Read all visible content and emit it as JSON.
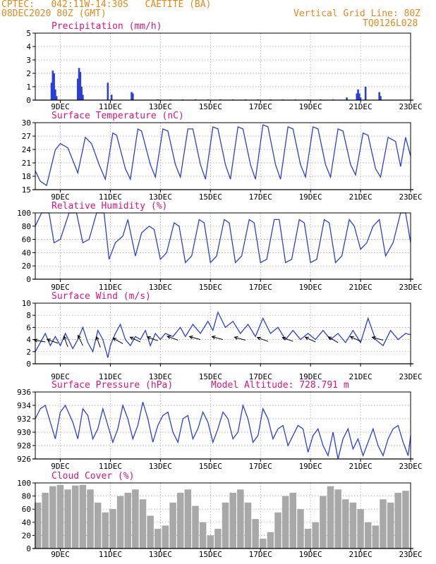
{
  "header": {
    "line1_left": "CPTEC:   042:11W-14:30S   CAETITE (BA)",
    "line2_left": "08DEC2020 80Z (GMT)",
    "line1_right": "Vertical Grid Line: 80Z",
    "line2_right": "TQ0126L028"
  },
  "x_ticks": [
    "9DEC",
    "11DEC",
    "13DEC",
    "15DEC",
    "17DEC",
    "19DEC",
    "21DEC",
    "23DEC"
  ],
  "colors": {
    "line": "#2b3fd8",
    "bar": "#2b3fd8",
    "cloud": "#a8a8a8",
    "title": "#d8157a",
    "header": "#e08a1e"
  },
  "chart_data": [
    {
      "type": "bar",
      "title": "Precipitation (mm/h)",
      "ylim": [
        0,
        5
      ],
      "yticks": [
        "0",
        "1",
        "2",
        "3",
        "4",
        "5"
      ],
      "x_range_days": [
        8.0,
        23.0
      ],
      "x": [
        8.65,
        8.7,
        8.75,
        8.8,
        8.85,
        9.7,
        9.75,
        9.8,
        9.85,
        9.9,
        10.9,
        11.05,
        11.85,
        11.9,
        12.9,
        13.4,
        13.9,
        14.4,
        14.9,
        15.4,
        15.9,
        16.4,
        16.9,
        17.4,
        17.9,
        18.4,
        18.9,
        19.4,
        19.9,
        20.45,
        20.85,
        20.9,
        20.95,
        21.0,
        21.2,
        21.75,
        21.8
      ],
      "values": [
        1.3,
        2.2,
        2.0,
        0.8,
        0.3,
        1.6,
        2.4,
        2.1,
        1.0,
        0.4,
        1.3,
        0.4,
        0.6,
        0.5,
        0.05,
        0.05,
        0.05,
        0.05,
        0.05,
        0.05,
        0.05,
        0.05,
        0.05,
        0.05,
        0.05,
        0.05,
        0.05,
        0.05,
        0.05,
        0.2,
        0.5,
        0.8,
        0.5,
        0.2,
        1.0,
        0.6,
        0.3
      ]
    },
    {
      "type": "line",
      "title": "Surface Temperature (nC)",
      "ylim": [
        15,
        31
      ],
      "yticks": [
        "15",
        "18",
        "21",
        "24",
        "27",
        "30"
      ],
      "x_range_days": [
        8.0,
        23.0
      ],
      "x": [
        8.0,
        8.2,
        8.45,
        8.8,
        9.0,
        9.3,
        9.7,
        10.0,
        10.25,
        10.55,
        10.8,
        11.1,
        11.25,
        11.6,
        11.8,
        12.1,
        12.25,
        12.6,
        12.8,
        13.1,
        13.3,
        13.6,
        13.8,
        14.1,
        14.3,
        14.6,
        14.8,
        15.1,
        15.3,
        15.6,
        15.8,
        16.1,
        16.3,
        16.6,
        16.8,
        17.1,
        17.3,
        17.6,
        17.8,
        18.1,
        18.3,
        18.6,
        18.8,
        19.1,
        19.3,
        19.6,
        19.8,
        20.1,
        20.3,
        20.6,
        20.8,
        21.1,
        21.3,
        21.6,
        21.8,
        22.1,
        22.4,
        22.6,
        22.8,
        23.0
      ],
      "values": [
        19.5,
        17.0,
        16.0,
        24.5,
        26.0,
        25.0,
        19.0,
        27.5,
        26.0,
        21.0,
        17.5,
        28.5,
        28.0,
        20.0,
        17.5,
        29.5,
        29.0,
        21.0,
        18.0,
        29.5,
        29.0,
        21.0,
        18.0,
        29.5,
        29.5,
        21.0,
        17.5,
        30.0,
        29.5,
        21.0,
        17.5,
        30.0,
        29.5,
        21.0,
        17.5,
        30.5,
        30.0,
        21.0,
        17.5,
        30.0,
        29.5,
        21.0,
        18.0,
        30.0,
        29.5,
        21.0,
        18.0,
        29.5,
        29.0,
        21.0,
        18.5,
        28.5,
        28.0,
        20.0,
        18.0,
        27.5,
        26.5,
        20.5,
        27.5,
        23.0
      ]
    },
    {
      "type": "line",
      "title": "Relative Humidity (%)",
      "ylim": [
        0,
        100
      ],
      "yticks": [
        "0",
        "20",
        "40",
        "60",
        "80",
        "100"
      ],
      "x_range_days": [
        8.0,
        23.0
      ],
      "x": [
        8.0,
        8.25,
        8.55,
        8.75,
        9.0,
        9.35,
        9.65,
        9.9,
        10.15,
        10.45,
        10.75,
        10.95,
        11.2,
        11.5,
        11.7,
        12.0,
        12.25,
        12.55,
        12.75,
        13.0,
        13.25,
        13.55,
        13.75,
        14.0,
        14.25,
        14.55,
        14.75,
        15.0,
        15.25,
        15.55,
        15.75,
        16.0,
        16.25,
        16.55,
        16.75,
        17.0,
        17.25,
        17.55,
        17.75,
        18.0,
        18.25,
        18.55,
        18.75,
        19.0,
        19.25,
        19.55,
        19.75,
        20.0,
        20.25,
        20.55,
        20.75,
        21.0,
        21.25,
        21.5,
        21.75,
        22.0,
        22.3,
        22.6,
        22.8,
        23.0
      ],
      "values": [
        80,
        100,
        100,
        55,
        60,
        100,
        100,
        55,
        60,
        100,
        100,
        30,
        55,
        65,
        90,
        35,
        70,
        80,
        75,
        30,
        40,
        85,
        80,
        25,
        35,
        90,
        85,
        25,
        35,
        90,
        85,
        25,
        35,
        90,
        85,
        25,
        30,
        90,
        90,
        25,
        30,
        90,
        85,
        25,
        30,
        90,
        85,
        25,
        35,
        90,
        80,
        45,
        55,
        80,
        90,
        35,
        55,
        100,
        100,
        55
      ]
    },
    {
      "type": "line",
      "title": "Surface Wind (m/s)",
      "ylim": [
        0,
        10
      ],
      "yticks": [
        "0",
        "2",
        "4",
        "6",
        "8",
        "10"
      ],
      "x_range_days": [
        8.0,
        23.0
      ],
      "x": [
        8.0,
        8.2,
        8.4,
        8.6,
        8.8,
        9.0,
        9.2,
        9.5,
        9.7,
        9.9,
        10.1,
        10.3,
        10.5,
        10.7,
        10.9,
        11.0,
        11.2,
        11.4,
        11.6,
        11.8,
        12.0,
        12.2,
        12.4,
        12.6,
        12.8,
        13.0,
        13.2,
        13.5,
        13.8,
        14.0,
        14.3,
        14.6,
        14.9,
        15.1,
        15.3,
        15.6,
        15.9,
        16.2,
        16.5,
        16.8,
        17.1,
        17.4,
        17.7,
        18.0,
        18.3,
        18.6,
        18.9,
        19.2,
        19.5,
        19.8,
        20.1,
        20.4,
        20.7,
        21.0,
        21.3,
        21.6,
        21.9,
        22.2,
        22.5,
        22.8,
        23.0
      ],
      "values": [
        2.0,
        3.5,
        5.0,
        3.0,
        4.5,
        3.0,
        5.0,
        2.5,
        4.0,
        6.0,
        3.5,
        2.0,
        5.5,
        4.0,
        1.0,
        3.0,
        5.0,
        6.5,
        4.0,
        3.0,
        4.5,
        4.0,
        5.5,
        3.0,
        5.0,
        4.0,
        5.0,
        4.5,
        6.0,
        4.5,
        6.5,
        5.0,
        7.0,
        5.5,
        8.5,
        6.0,
        7.0,
        5.0,
        6.5,
        4.5,
        7.5,
        5.0,
        6.0,
        4.0,
        5.5,
        4.0,
        5.0,
        4.0,
        5.5,
        4.0,
        5.0,
        3.5,
        5.5,
        3.5,
        7.5,
        4.0,
        3.0,
        5.5,
        4.0,
        5.0,
        4.8
      ],
      "vectors_note": "wind direction arrows"
    },
    {
      "type": "line",
      "title": "Surface Pressure (hPa)",
      "annotation": "Model Altitude: 728.791 m",
      "ylim": [
        926,
        936
      ],
      "yticks": [
        "926",
        "928",
        "930",
        "932",
        "934",
        "936"
      ],
      "x_range_days": [
        8.0,
        23.0
      ],
      "x": [
        8.0,
        8.2,
        8.4,
        8.6,
        8.8,
        9.0,
        9.2,
        9.5,
        9.7,
        9.9,
        10.1,
        10.3,
        10.5,
        10.7,
        10.9,
        11.1,
        11.3,
        11.5,
        11.7,
        11.9,
        12.1,
        12.3,
        12.5,
        12.7,
        12.9,
        13.1,
        13.3,
        13.5,
        13.7,
        13.9,
        14.1,
        14.3,
        14.5,
        14.7,
        14.9,
        15.1,
        15.3,
        15.5,
        15.7,
        15.9,
        16.1,
        16.3,
        16.5,
        16.7,
        16.9,
        17.1,
        17.3,
        17.5,
        17.7,
        17.9,
        18.1,
        18.3,
        18.5,
        18.7,
        18.9,
        19.1,
        19.3,
        19.5,
        19.7,
        19.9,
        20.1,
        20.3,
        20.5,
        20.7,
        20.9,
        21.1,
        21.3,
        21.5,
        21.7,
        21.9,
        22.1,
        22.3,
        22.5,
        22.7,
        22.9,
        23.0
      ],
      "values": [
        932.0,
        933.5,
        934.0,
        931.5,
        929.0,
        933.0,
        934.0,
        931.5,
        929.0,
        933.5,
        932.5,
        929.0,
        930.5,
        933.5,
        931.0,
        928.5,
        930.5,
        934.0,
        932.0,
        929.0,
        931.0,
        934.5,
        932.0,
        928.5,
        931.0,
        932.5,
        933.0,
        930.0,
        928.5,
        932.0,
        932.5,
        929.0,
        930.5,
        933.0,
        931.5,
        928.5,
        930.5,
        933.0,
        932.0,
        929.0,
        930.0,
        934.0,
        932.0,
        928.5,
        929.5,
        933.5,
        932.0,
        929.0,
        930.5,
        931.0,
        928.0,
        929.5,
        931.0,
        930.5,
        927.0,
        929.5,
        930.5,
        928.0,
        926.5,
        930.0,
        926.0,
        929.0,
        930.5,
        927.5,
        929.0,
        926.5,
        928.5,
        930.5,
        928.0,
        926.5,
        929.0,
        930.5,
        931.0,
        928.5,
        926.5,
        929.5
      ]
    },
    {
      "type": "bar",
      "title": "Cloud Cover (%)",
      "ylim": [
        0,
        100
      ],
      "yticks": [
        "0",
        "20",
        "40",
        "60",
        "80",
        "100"
      ],
      "x_range_days": [
        8.0,
        23.0
      ],
      "x": [
        8.1,
        8.4,
        8.7,
        9.0,
        9.3,
        9.6,
        9.9,
        10.2,
        10.5,
        10.8,
        11.1,
        11.4,
        11.7,
        12.0,
        12.3,
        12.6,
        12.9,
        13.2,
        13.5,
        13.8,
        14.1,
        14.4,
        14.7,
        15.0,
        15.3,
        15.6,
        15.9,
        16.2,
        16.5,
        16.8,
        17.1,
        17.4,
        17.7,
        18.0,
        18.3,
        18.6,
        18.9,
        19.2,
        19.5,
        19.8,
        20.1,
        20.4,
        20.7,
        21.0,
        21.3,
        21.6,
        21.9,
        22.2,
        22.5,
        22.8
      ],
      "values": [
        70,
        85,
        95,
        97,
        90,
        96,
        97,
        90,
        70,
        55,
        60,
        80,
        85,
        90,
        75,
        50,
        30,
        35,
        70,
        85,
        90,
        65,
        40,
        20,
        30,
        70,
        85,
        90,
        70,
        45,
        15,
        25,
        55,
        80,
        85,
        60,
        30,
        40,
        80,
        95,
        90,
        75,
        70,
        60,
        40,
        35,
        75,
        70,
        85,
        88
      ]
    }
  ]
}
